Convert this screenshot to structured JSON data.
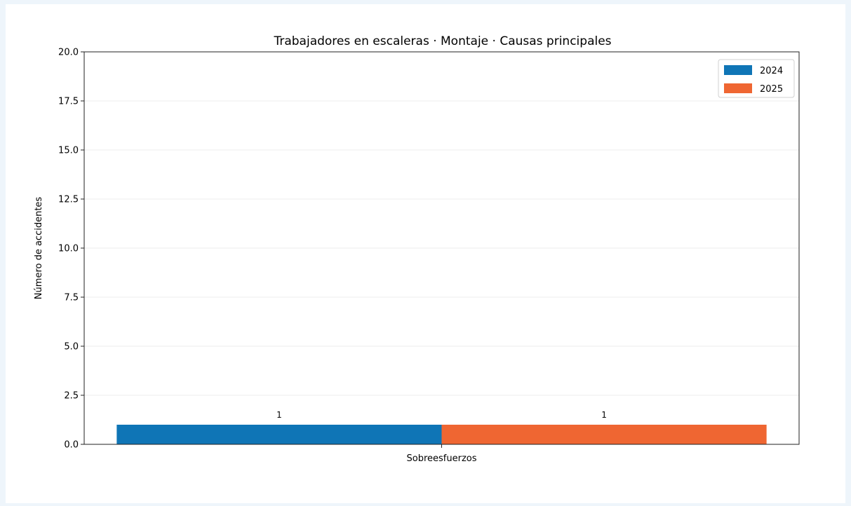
{
  "chart_data": {
    "type": "bar",
    "title": "Trabajadores en escaleras · Montaje · Causas principales",
    "xlabel": "",
    "ylabel": "Número de accidentes",
    "categories": [
      "Sobreesfuerzos"
    ],
    "series": [
      {
        "name": "2024",
        "values": [
          1
        ],
        "color": "#0f75b6"
      },
      {
        "name": "2025",
        "values": [
          1
        ],
        "color": "#ef6632"
      }
    ],
    "ylim": [
      0,
      20
    ],
    "yticks": [
      0.0,
      2.5,
      5.0,
      7.5,
      10.0,
      12.5,
      15.0,
      17.5,
      20.0
    ],
    "ytick_labels": [
      "0.0",
      "2.5",
      "5.0",
      "7.5",
      "10.0",
      "12.5",
      "15.0",
      "17.5",
      "20.0"
    ],
    "data_labels": [
      "1",
      "1"
    ],
    "grid": "horizontal",
    "legend_position": "top-right"
  }
}
